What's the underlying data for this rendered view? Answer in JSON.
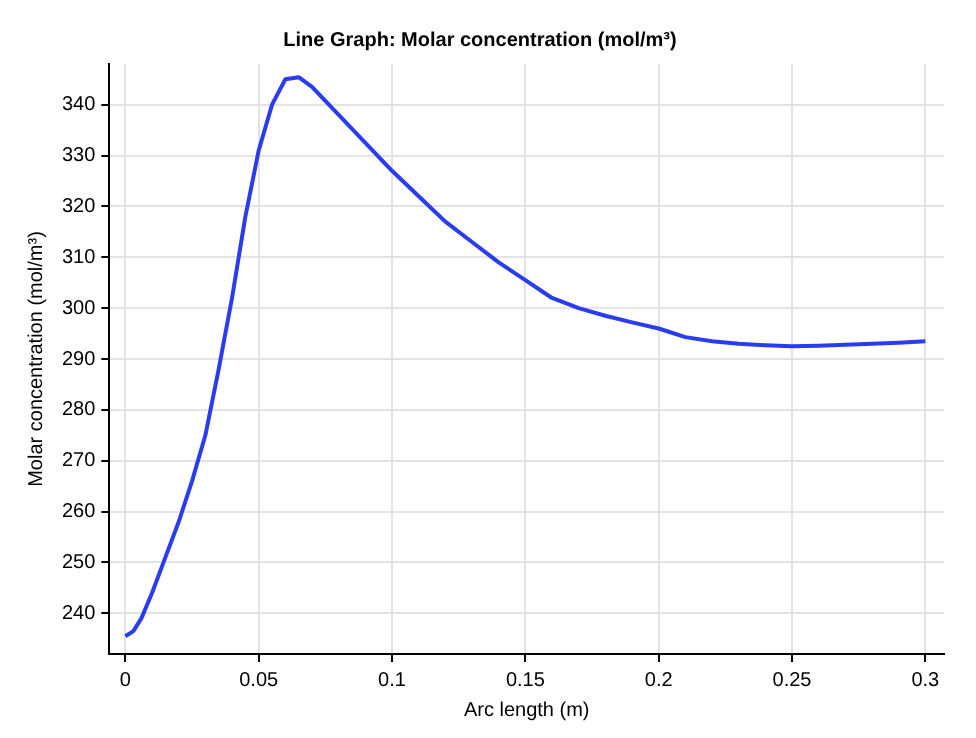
{
  "chart_data": {
    "type": "line",
    "title": "Line Graph: Molar concentration (mol/m³)",
    "xlabel": "Arc length (m)",
    "ylabel": "Molar concentration (mol/m³)",
    "x": [
      0,
      0.003,
      0.006,
      0.01,
      0.015,
      0.02,
      0.025,
      0.03,
      0.035,
      0.04,
      0.045,
      0.05,
      0.055,
      0.06,
      0.065,
      0.07,
      0.08,
      0.09,
      0.1,
      0.11,
      0.12,
      0.13,
      0.14,
      0.15,
      0.16,
      0.17,
      0.18,
      0.19,
      0.2,
      0.21,
      0.22,
      0.23,
      0.24,
      0.25,
      0.26,
      0.27,
      0.28,
      0.29,
      0.3
    ],
    "series": [
      {
        "color": "#2a3cf0",
        "values": [
          235.5,
          236.5,
          239,
          244,
          251,
          258,
          266,
          275,
          288,
          302,
          318,
          331,
          340,
          345,
          345.4,
          343.5,
          338,
          332.5,
          327,
          322,
          317,
          313,
          309,
          305.5,
          302,
          300,
          298.5,
          297.2,
          296,
          294.3,
          293.5,
          293,
          292.7,
          292.5,
          292.6,
          292.8,
          293,
          293.2,
          293.5
        ]
      }
    ],
    "xlim": [
      -0.006,
      0.307
    ],
    "ylim": [
      232,
      348
    ],
    "xticks": [
      0,
      0.05,
      0.1,
      0.15,
      0.2,
      0.25,
      0.3
    ],
    "yticks": [
      240,
      250,
      260,
      270,
      280,
      290,
      300,
      310,
      320,
      330,
      340
    ],
    "grid": true,
    "legend": false,
    "marker": "none",
    "line_style": "solid"
  }
}
